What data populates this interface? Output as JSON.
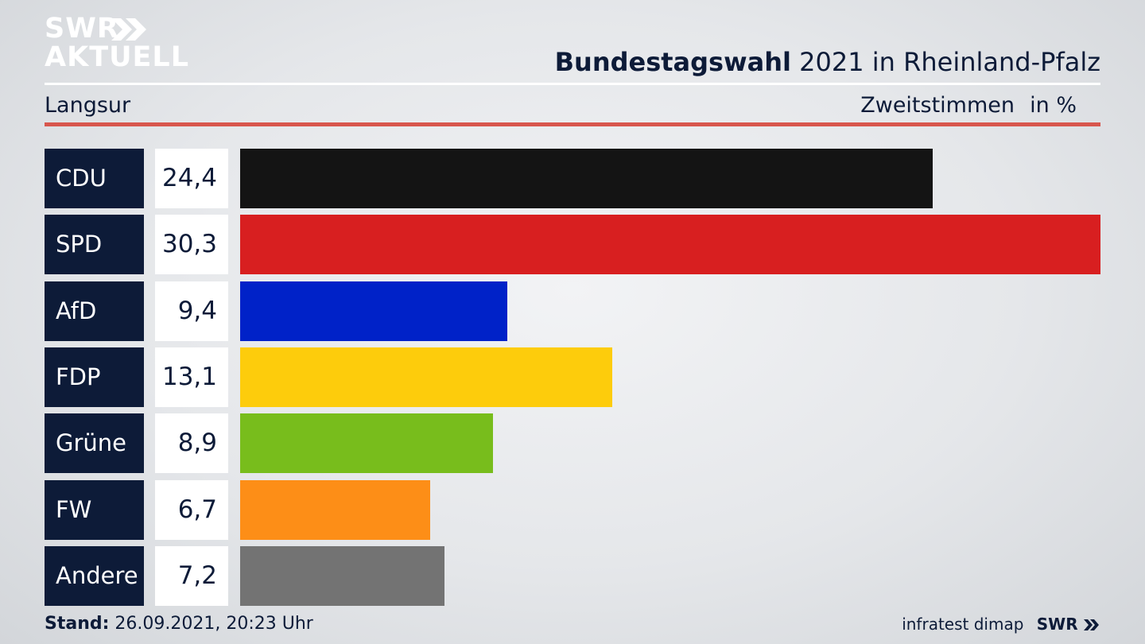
{
  "header": {
    "logo_line1": "SWR",
    "logo_line2": "AKTUELL",
    "title_bold": "Bundestagswahl",
    "title_rest": "2021 in Rheinland-Pfalz",
    "region": "Langsur",
    "metric": "Zweitstimmen",
    "unit": "in %"
  },
  "colors": {
    "navy": "#0d1b38",
    "accent_line": "#d8564d"
  },
  "chart_data": {
    "type": "bar",
    "orientation": "horizontal",
    "title": "Bundestagswahl 2021 in Rheinland-Pfalz",
    "xlabel": "Zweitstimmen",
    "ylabel": "",
    "unit": "in %",
    "categories": [
      "CDU",
      "SPD",
      "AfD",
      "FDP",
      "Grüne",
      "FW",
      "Andere"
    ],
    "values": [
      24.4,
      30.3,
      9.4,
      13.1,
      8.9,
      6.7,
      7.2
    ],
    "value_labels": [
      "24,4",
      "30,3",
      "9,4",
      "13,1",
      "8,9",
      "6,7",
      "7,2"
    ],
    "colors": [
      "#141414",
      "#d81f20",
      "#0022c8",
      "#fdcc0c",
      "#78bd1c",
      "#fd8e17",
      "#737373"
    ],
    "xlim": [
      0,
      30.3
    ],
    "grid": false,
    "legend": "none"
  },
  "footer": {
    "stand_label": "Stand:",
    "stand_value": "26.09.2021, 20:23 Uhr",
    "source": "infratest dimap",
    "brand": "SWR"
  }
}
